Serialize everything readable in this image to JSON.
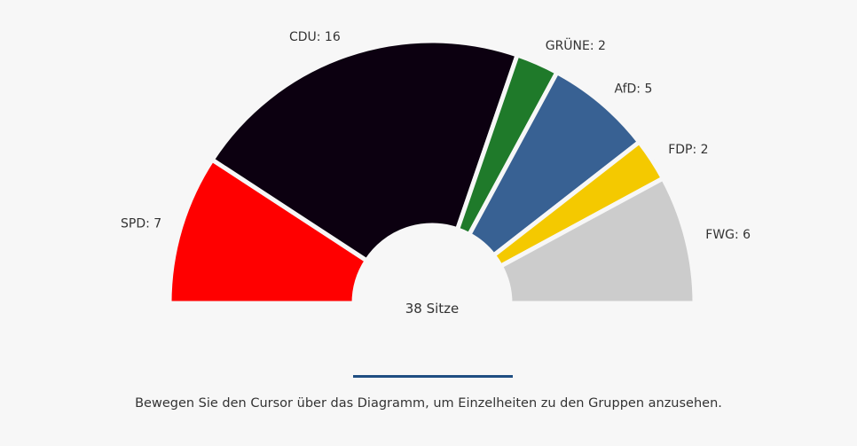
{
  "chart_data": {
    "type": "pie",
    "subtype": "parliament-semicircle",
    "total_label": "38 Sitze",
    "categories": [
      "SPD",
      "CDU",
      "GRÜNE",
      "AfD",
      "FDP",
      "FWG"
    ],
    "values": [
      7,
      16,
      2,
      5,
      2,
      6
    ],
    "labels": [
      "SPD: 7",
      "CDU: 16",
      "GRÜNE: 2",
      "AfD: 5",
      "FDP: 2",
      "FWG: 6"
    ],
    "colors": [
      "#ff0000",
      "#0c0010",
      "#1f7a2a",
      "#386193",
      "#f4c900",
      "#cccccc"
    ],
    "legend": "none"
  },
  "footer": {
    "hint": "Bewegen Sie den Cursor über das Diagramm, um Einzelheiten zu den Gruppen anzusehen."
  }
}
